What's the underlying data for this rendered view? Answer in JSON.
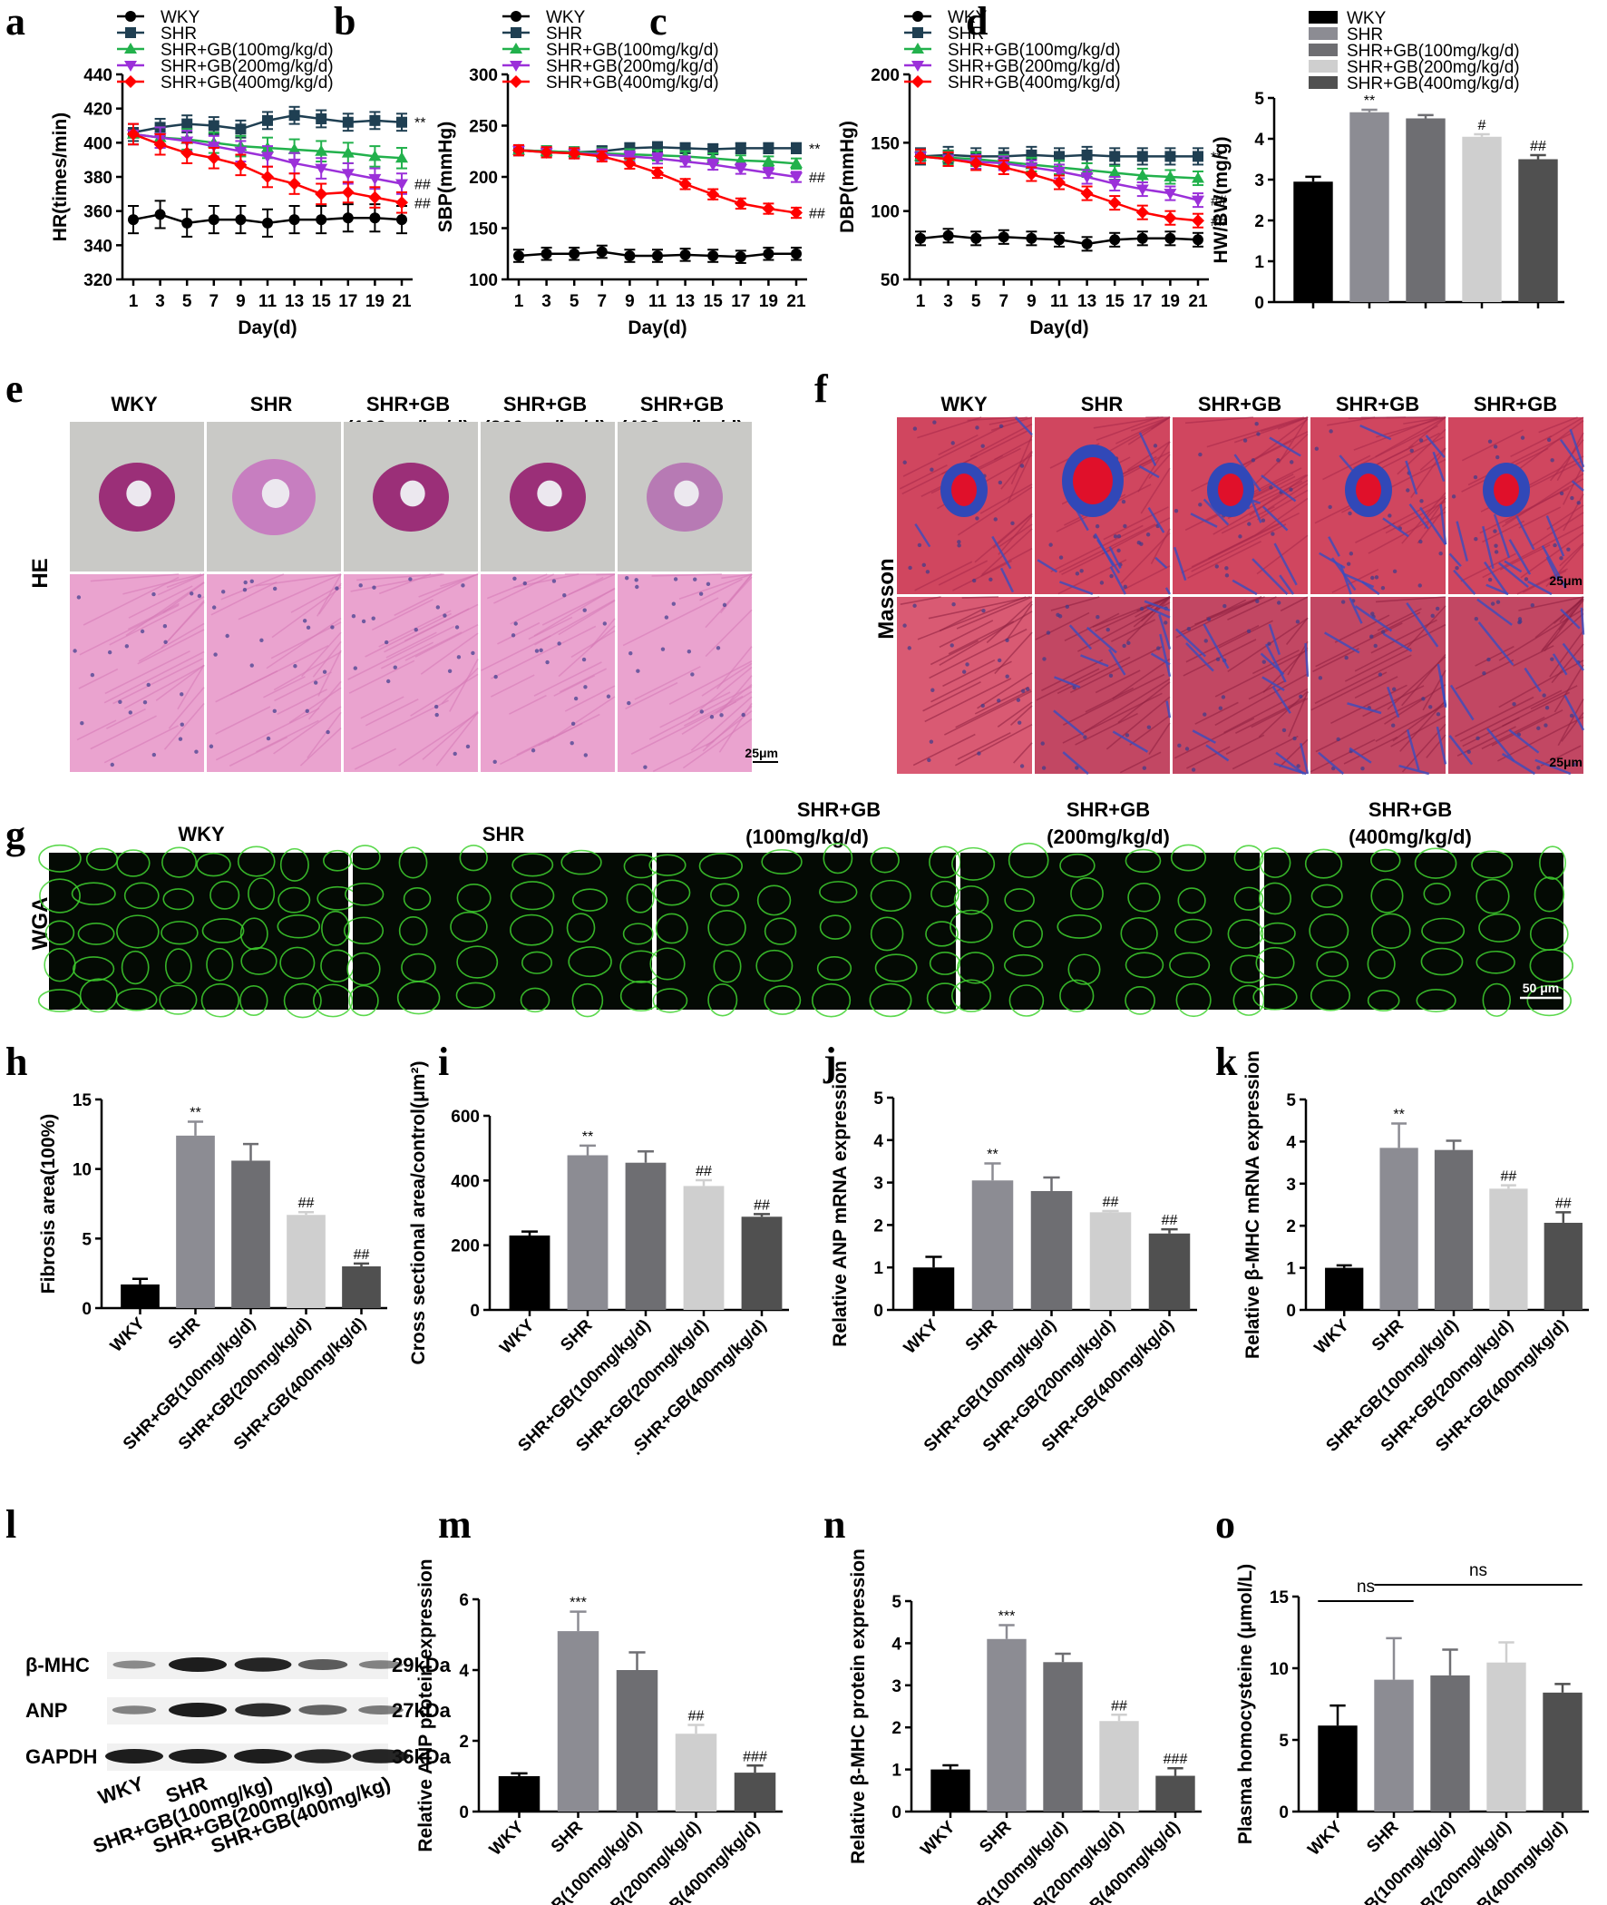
{
  "panel_labels": [
    "a",
    "b",
    "c",
    "d",
    "e",
    "f",
    "g",
    "h",
    "i",
    "j",
    "k",
    "l",
    "m",
    "n",
    "o"
  ],
  "chart_data": [
    {
      "id": "a",
      "type": "line",
      "xlabel": "Day(d)",
      "ylabel": "HR(times/min)",
      "ylim": [
        320,
        440
      ],
      "yticks": [
        320,
        340,
        360,
        380,
        400,
        420,
        440
      ],
      "x": [
        1,
        3,
        5,
        7,
        9,
        11,
        13,
        15,
        17,
        19,
        21
      ],
      "legend": "top-left",
      "series": [
        {
          "name": "WKY",
          "color": "#000000",
          "marker": "circle",
          "values": [
            355,
            358,
            353,
            355,
            355,
            353,
            355,
            355,
            356,
            356,
            355
          ],
          "err": 8,
          "sig": ""
        },
        {
          "name": "SHR",
          "color": "#1f3f52",
          "marker": "square",
          "values": [
            406,
            409,
            411,
            410,
            408,
            413,
            416,
            414,
            412,
            413,
            412
          ],
          "err": 5,
          "sig": "**"
        },
        {
          "name": "SHR+GB(100mg/kg/d)",
          "color": "#22b14c",
          "marker": "triangle-up",
          "values": [
            405,
            403,
            402,
            400,
            398,
            397,
            396,
            395,
            394,
            392,
            391
          ],
          "err": 6,
          "sig": ""
        },
        {
          "name": "SHR+GB(200mg/kg/d)",
          "color": "#9b30d9",
          "marker": "triangle-down",
          "values": [
            405,
            403,
            401,
            398,
            395,
            392,
            388,
            385,
            382,
            379,
            376
          ],
          "err": 6,
          "sig": "##"
        },
        {
          "name": "SHR+GB(400mg/kg/d)",
          "color": "#ff0000",
          "marker": "diamond",
          "values": [
            405,
            399,
            394,
            391,
            387,
            380,
            376,
            370,
            371,
            368,
            365
          ],
          "err": 6,
          "sig": "##"
        }
      ]
    },
    {
      "id": "b",
      "type": "line",
      "xlabel": "Day(d)",
      "ylabel": "SBP(mmHg)",
      "ylim": [
        100,
        300
      ],
      "yticks": [
        100,
        150,
        200,
        250,
        300
      ],
      "x": [
        1,
        3,
        5,
        7,
        9,
        11,
        13,
        15,
        17,
        19,
        21
      ],
      "legend": "top-left",
      "series": [
        {
          "name": "WKY",
          "color": "#000000",
          "marker": "circle",
          "values": [
            123,
            125,
            125,
            127,
            123,
            123,
            124,
            123,
            122,
            125,
            125
          ],
          "err": 6,
          "sig": ""
        },
        {
          "name": "SHR",
          "color": "#1f3f52",
          "marker": "square",
          "values": [
            226,
            225,
            224,
            225,
            228,
            229,
            228,
            227,
            228,
            228,
            228
          ],
          "err": 5,
          "sig": "**"
        },
        {
          "name": "SHR+GB(100mg/kg/d)",
          "color": "#22b14c",
          "marker": "triangle-up",
          "values": [
            226,
            225,
            224,
            223,
            222,
            221,
            220,
            218,
            216,
            215,
            213
          ],
          "err": 5,
          "sig": ""
        },
        {
          "name": "SHR+GB(200mg/kg/d)",
          "color": "#9b30d9",
          "marker": "triangle-down",
          "values": [
            226,
            224,
            223,
            222,
            220,
            218,
            215,
            212,
            208,
            204,
            200
          ],
          "err": 5,
          "sig": "##"
        },
        {
          "name": "SHR+GB(400mg/kg/d)",
          "color": "#ff0000",
          "marker": "diamond",
          "values": [
            226,
            224,
            223,
            220,
            213,
            204,
            193,
            183,
            174,
            169,
            165
          ],
          "err": 5,
          "sig": "##"
        }
      ]
    },
    {
      "id": "c",
      "type": "line",
      "xlabel": "Day(d)",
      "ylabel": "DBP(mmHg)",
      "ylim": [
        50,
        200
      ],
      "yticks": [
        50,
        100,
        150,
        200
      ],
      "x": [
        1,
        3,
        5,
        7,
        9,
        11,
        13,
        15,
        17,
        19,
        21
      ],
      "legend": "top-left",
      "series": [
        {
          "name": "WKY",
          "color": "#000000",
          "marker": "circle",
          "values": [
            80,
            82,
            80,
            81,
            80,
            79,
            76,
            79,
            80,
            80,
            79
          ],
          "err": 5,
          "sig": ""
        },
        {
          "name": "SHR",
          "color": "#1f3f52",
          "marker": "square",
          "values": [
            140,
            141,
            140,
            140,
            141,
            140,
            141,
            140,
            140,
            140,
            140
          ],
          "err": 6,
          "sig": "**"
        },
        {
          "name": "SHR+GB(100mg/kg/d)",
          "color": "#22b14c",
          "marker": "triangle-up",
          "values": [
            140,
            139,
            138,
            136,
            134,
            132,
            130,
            128,
            126,
            125,
            124
          ],
          "err": 5,
          "sig": ""
        },
        {
          "name": "SHR+GB(200mg/kg/d)",
          "color": "#9b30d9",
          "marker": "triangle-down",
          "values": [
            140,
            138,
            136,
            135,
            132,
            129,
            125,
            120,
            116,
            113,
            108
          ],
          "err": 5,
          "sig": "##"
        },
        {
          "name": "SHR+GB(400mg/kg/d)",
          "color": "#ff0000",
          "marker": "diamond",
          "values": [
            140,
            138,
            135,
            132,
            127,
            121,
            113,
            106,
            99,
            95,
            93
          ],
          "err": 5,
          "sig": "##"
        }
      ]
    },
    {
      "id": "d",
      "type": "bar",
      "ylabel": "HW/BW(mg/g)",
      "ylim": [
        0,
        5
      ],
      "yticks": [
        0,
        1,
        2,
        3,
        4,
        5
      ],
      "categories": [
        "WKY",
        "SHR",
        "SHR+GB(100mg/kg/d)",
        "SHR+GB(200mg/kg/d)",
        "SHR+GB(400mg/kg/d)"
      ],
      "show_xtick_labels": false,
      "legend": "top-right",
      "values": [
        2.95,
        4.65,
        4.5,
        4.05,
        3.5
      ],
      "errors": [
        0.12,
        0.06,
        0.08,
        0.06,
        0.1
      ],
      "sig": [
        "",
        "**",
        "",
        "#",
        "##"
      ],
      "colors": [
        "#000000",
        "#8c8c93",
        "#6e6e72",
        "#cfcfcf",
        "#505050"
      ]
    },
    {
      "id": "h",
      "type": "bar",
      "ylabel": "Fibrosis area(100%)",
      "ylim": [
        0,
        15
      ],
      "yticks": [
        0,
        5,
        10,
        15
      ],
      "categories": [
        "WKY",
        "SHR",
        "SHR+GB(100mg/kg/d)",
        "SHR+GB(200mg/kg/d)",
        "SHR+GB(400mg/kg/d)"
      ],
      "values": [
        1.7,
        12.4,
        10.6,
        6.7,
        3.0
      ],
      "errors": [
        0.4,
        1.0,
        1.2,
        0.2,
        0.2
      ],
      "sig": [
        "",
        "**",
        "",
        "##",
        "##"
      ],
      "colors": [
        "#000000",
        "#8c8c93",
        "#6e6e72",
        "#cfcfcf",
        "#505050"
      ]
    },
    {
      "id": "i",
      "type": "bar",
      "ylabel": "Cross sectional area/control(μm²)",
      "ylim": [
        0,
        600
      ],
      "yticks": [
        0,
        200,
        400,
        600
      ],
      "categories": [
        "WKY",
        "SHR",
        "SHR+GB(100mg/kg/d)",
        "SHR+GB(200mg/kg/d)",
        ".SHR+GB(400mg/kg/d)"
      ],
      "values": [
        230,
        478,
        455,
        383,
        288
      ],
      "errors": [
        12,
        30,
        35,
        18,
        8
      ],
      "sig": [
        "",
        "**",
        "",
        "##",
        "##"
      ],
      "colors": [
        "#000000",
        "#8c8c93",
        "#6e6e72",
        "#cfcfcf",
        "#505050"
      ]
    },
    {
      "id": "j",
      "type": "bar",
      "ylabel": "Relative ANP mRNA expression",
      "ylim": [
        0,
        5
      ],
      "yticks": [
        0,
        1,
        2,
        3,
        4,
        5
      ],
      "categories": [
        "WKY",
        "SHR",
        "SHR+GB(100mg/kg/d)",
        "SHR+GB(200mg/kg/d)",
        "SHR+GB(400mg/kg/d)"
      ],
      "values": [
        1.0,
        3.05,
        2.8,
        2.3,
        1.8
      ],
      "errors": [
        0.25,
        0.4,
        0.32,
        0.03,
        0.1
      ],
      "sig": [
        "",
        "**",
        "",
        "##",
        "##"
      ],
      "colors": [
        "#000000",
        "#8c8c93",
        "#6e6e72",
        "#cfcfcf",
        "#505050"
      ]
    },
    {
      "id": "k",
      "type": "bar",
      "ylabel": "Relative β-MHC mRNA expression",
      "ylim": [
        0,
        5
      ],
      "yticks": [
        0,
        1,
        2,
        3,
        4,
        5
      ],
      "categories": [
        "WKY",
        "SHR",
        "SHR+GB(100mg/kg/d)",
        "SHR+GB(200mg/kg/d)",
        "SHR+GB(400mg/kg/d)"
      ],
      "values": [
        1.0,
        3.85,
        3.8,
        2.88,
        2.07
      ],
      "errors": [
        0.06,
        0.58,
        0.22,
        0.08,
        0.25
      ],
      "sig": [
        "",
        "**",
        "",
        "##",
        "##"
      ],
      "colors": [
        "#000000",
        "#8c8c93",
        "#6e6e72",
        "#cfcfcf",
        "#505050"
      ]
    },
    {
      "id": "m",
      "type": "bar",
      "ylabel": "Relative ANP protein expression",
      "ylim": [
        0,
        6
      ],
      "yticks": [
        0,
        2,
        4,
        6
      ],
      "categories": [
        "WKY",
        "SHR",
        "SHR+GB(100mg/kg/d)",
        "SHR+GB(200mg/kg/d)",
        "SHR+GB(400mg/kg/d)"
      ],
      "values": [
        1.0,
        5.1,
        4.0,
        2.2,
        1.1
      ],
      "errors": [
        0.08,
        0.55,
        0.5,
        0.25,
        0.2
      ],
      "sig": [
        "",
        "***",
        "",
        "##",
        "###"
      ],
      "colors": [
        "#000000",
        "#8c8c93",
        "#6e6e72",
        "#cfcfcf",
        "#505050"
      ]
    },
    {
      "id": "n",
      "type": "bar",
      "ylabel": "Relative β-MHC protein expression",
      "ylim": [
        0,
        5
      ],
      "yticks": [
        0,
        1,
        2,
        3,
        4,
        5
      ],
      "categories": [
        "WKY",
        "SHR",
        "SHR+GB(100mg/kg/d)",
        "SHR+GB(200mg/kg/d)",
        "SHR+GB(400mg/kg/d)"
      ],
      "values": [
        1.0,
        4.1,
        3.55,
        2.15,
        0.85
      ],
      "errors": [
        0.1,
        0.33,
        0.2,
        0.15,
        0.18
      ],
      "sig": [
        "",
        "***",
        "",
        "##",
        "###"
      ],
      "colors": [
        "#000000",
        "#8c8c93",
        "#6e6e72",
        "#cfcfcf",
        "#505050"
      ]
    },
    {
      "id": "o",
      "type": "bar",
      "ylabel": "Plasma homocysteine (μmol/L)",
      "ylim": [
        0,
        15
      ],
      "yticks": [
        0,
        5,
        10,
        15
      ],
      "categories": [
        "WKY",
        "SHR",
        "SHR+GB(100mg/kg/d)",
        "SHR+GB(200mg/kg/d)",
        ".SHR+GB(400mg/kg/d)"
      ],
      "values": [
        6.0,
        9.2,
        9.5,
        10.4,
        8.3
      ],
      "errors": [
        1.4,
        2.9,
        1.8,
        1.4,
        0.6
      ],
      "sig": [
        "",
        "",
        "",
        "",
        ""
      ],
      "brackets": [
        {
          "from": 0,
          "to": 1,
          "label": "ns"
        },
        {
          "from": 1,
          "to": 4,
          "label": "ns"
        }
      ],
      "colors": [
        "#000000",
        "#8c8c93",
        "#6e6e72",
        "#cfcfcf",
        "#505050"
      ]
    }
  ],
  "histology": {
    "e": {
      "side_label": "HE",
      "headers": [
        [
          "WKY"
        ],
        [
          "SHR"
        ],
        [
          "SHR+GB",
          "(100mg/kg/d)"
        ],
        [
          "SHR+GB",
          "(200mg/kg/d)"
        ],
        [
          "SHR+GB",
          "(400mg/kg/d)"
        ]
      ],
      "scale": "25μm"
    },
    "f": {
      "side_label": "Masson",
      "headers": [
        [
          "WKY"
        ],
        [
          "SHR"
        ],
        [
          "SHR+GB",
          "(100mg/kg/d)"
        ],
        [
          "SHR+GB",
          "(200mg/kg/d)"
        ],
        [
          "SHR+GB",
          "(400mg/kg/d)"
        ]
      ],
      "scale": "25μm"
    },
    "g": {
      "side_label": "WGA",
      "headers": [
        [
          "WKY"
        ],
        [
          "SHR"
        ],
        [
          "SHR+GB",
          "(100mg/kg/d)"
        ],
        [
          "SHR+GB",
          "(200mg/kg/d)"
        ],
        [
          "SHR+GB",
          "(400mg/kg/d)"
        ]
      ],
      "scale": "50 μm"
    }
  },
  "western_blot": {
    "rows": [
      {
        "name": "β-MHC",
        "size": "29kDa"
      },
      {
        "name": "ANP",
        "size": "27kDa"
      },
      {
        "name": "GAPDH",
        "size": "36kDa"
      }
    ],
    "lanes": [
      "WKY",
      "SHR",
      "SHR+GB(100mg/kg)",
      "SHR+GB(200mg/kg)",
      "SHR+GB(400mg/kg)"
    ],
    "intensity": [
      [
        0.3,
        1.0,
        0.95,
        0.6,
        0.35
      ],
      [
        0.35,
        1.0,
        0.9,
        0.55,
        0.4
      ],
      [
        1.0,
        1.0,
        1.0,
        0.95,
        0.95
      ]
    ]
  }
}
